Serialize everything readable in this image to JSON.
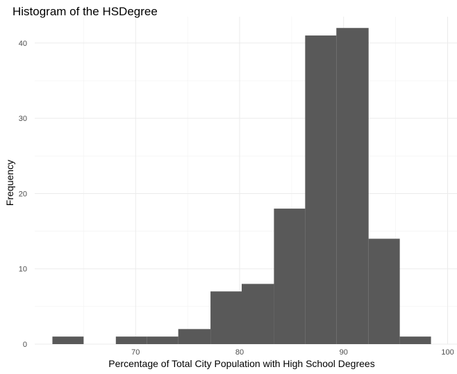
{
  "chart_data": {
    "type": "bar",
    "title": "Histogram of the HSDegree",
    "xlabel": "Percentage of Total City Population with High School Degrees",
    "ylabel": "Frequency",
    "xlim": [
      60.3,
      100.9
    ],
    "ylim": [
      0,
      43.5
    ],
    "x_ticks": [
      70,
      80,
      90,
      100
    ],
    "y_ticks": [
      0,
      10,
      20,
      30,
      40
    ],
    "x_tick_labels": [
      "70",
      "80",
      "90",
      "100"
    ],
    "y_tick_labels": [
      "0",
      "10",
      "20",
      "30",
      "40"
    ],
    "grid": true,
    "legend": "none",
    "bar_color": "#595959",
    "bins": [
      {
        "x0": 62.0,
        "x1": 65.0,
        "count": 1
      },
      {
        "x0": 65.0,
        "x1": 68.1,
        "count": 0
      },
      {
        "x0": 68.1,
        "x1": 71.1,
        "count": 1
      },
      {
        "x0": 71.1,
        "x1": 74.1,
        "count": 1
      },
      {
        "x0": 74.1,
        "x1": 77.2,
        "count": 2
      },
      {
        "x0": 77.2,
        "x1": 80.2,
        "count": 7
      },
      {
        "x0": 80.2,
        "x1": 83.3,
        "count": 8
      },
      {
        "x0": 83.3,
        "x1": 86.3,
        "count": 18
      },
      {
        "x0": 86.3,
        "x1": 89.3,
        "count": 41
      },
      {
        "x0": 89.3,
        "x1": 92.4,
        "count": 42
      },
      {
        "x0": 92.4,
        "x1": 95.4,
        "count": 14
      },
      {
        "x0": 95.4,
        "x1": 98.4,
        "count": 1
      }
    ]
  }
}
